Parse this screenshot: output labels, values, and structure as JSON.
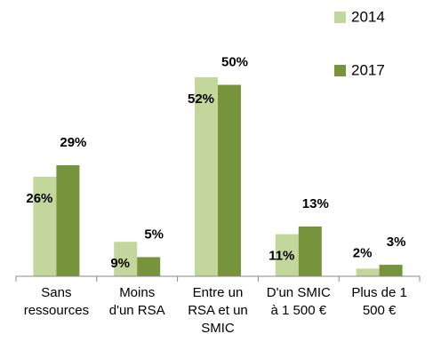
{
  "chart_data": {
    "type": "bar",
    "categories": [
      [
        "Sans",
        "ressources"
      ],
      [
        "Moins",
        "d'un RSA"
      ],
      [
        "Entre un",
        "RSA et un",
        "SMIC"
      ],
      [
        "D'un SMIC",
        "à 1 500 €"
      ],
      [
        "Plus de 1",
        "500 €"
      ]
    ],
    "series": [
      {
        "name": "2014",
        "color": "#c3d69b",
        "values": [
          26,
          9,
          52,
          11,
          2
        ],
        "value_labels": [
          "26%",
          "9%",
          "52%",
          "11%",
          "2%"
        ]
      },
      {
        "name": "2017",
        "color": "#77933c",
        "values": [
          29,
          5,
          50,
          13,
          3
        ],
        "value_labels": [
          "29%",
          "5%",
          "50%",
          "13%",
          "3%"
        ]
      }
    ],
    "legend": "top-right"
  }
}
